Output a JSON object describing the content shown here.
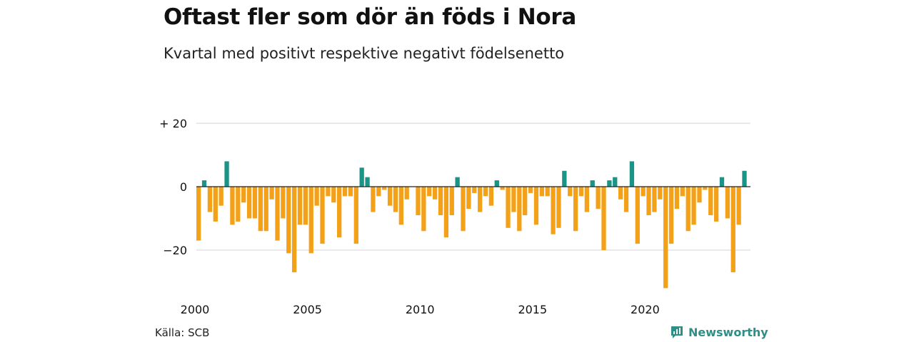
{
  "title": "Oftast fler som dör än föds i Nora",
  "subtitle": "Kvartal med positivt respektive negativt födelsenetto",
  "source": "Källa: SCB",
  "brand": "Newsworthy",
  "colors": {
    "positive": "#1a9486",
    "negative": "#f4a11a",
    "grid": "#dcdcdc",
    "zero": "#222222",
    "brand": "#2e8f86"
  },
  "chart_data": {
    "type": "bar",
    "y_tick_labels": [
      "+ 20",
      "0",
      "−20"
    ],
    "y_ticks": [
      20,
      0,
      -20
    ],
    "ylim": [
      -32,
      20
    ],
    "x_tick_labels": [
      "2000",
      "2005",
      "2010",
      "2015",
      "2020"
    ],
    "start_year": 2000,
    "values": [
      -17,
      2,
      -8,
      -11,
      -6,
      8,
      -12,
      -11,
      -5,
      -10,
      -10,
      -14,
      -14,
      -4,
      -17,
      -10,
      -21,
      -27,
      -12,
      -12,
      -21,
      -6,
      -18,
      -3,
      -5,
      -16,
      -3,
      -3,
      -18,
      6,
      3,
      -8,
      -3,
      -1,
      -6,
      -8,
      -12,
      -4,
      0,
      -9,
      -14,
      -3,
      -4,
      -9,
      -16,
      -9,
      3,
      -14,
      -7,
      -2,
      -8,
      -3,
      -6,
      2,
      -1,
      -13,
      -8,
      -14,
      -9,
      -2,
      -12,
      -3,
      -3,
      -15,
      -13,
      5,
      -3,
      -14,
      -3,
      -8,
      2,
      -7,
      -20,
      2,
      3,
      -4,
      -8,
      8,
      -18,
      -3,
      -9,
      -8,
      -4,
      -32,
      -18,
      -7,
      -3,
      -14,
      -12,
      -5,
      -1,
      -9,
      -11,
      3,
      -10,
      -27,
      -12,
      5
    ]
  }
}
